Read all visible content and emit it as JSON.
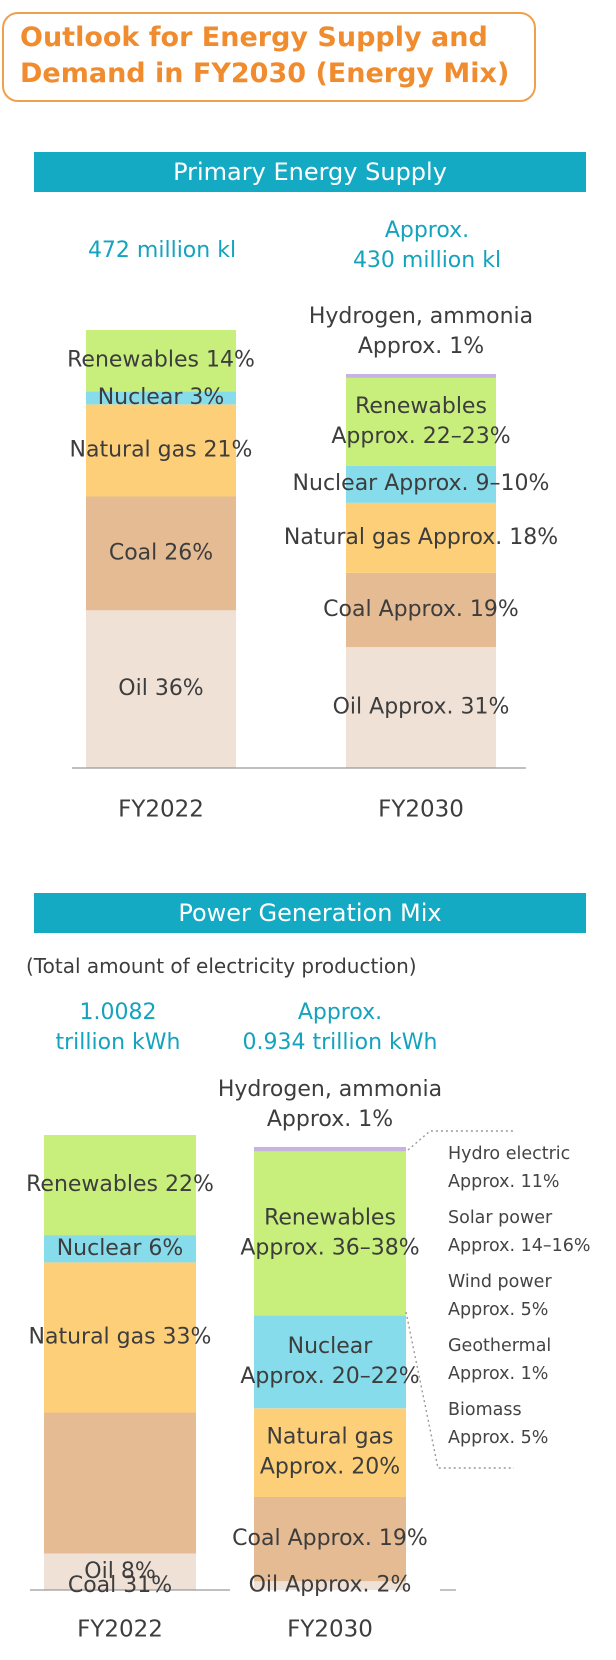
{
  "title": "Outlook for Energy Supply and\nDemand in FY2030 (Energy Mix)",
  "colors": {
    "title": "#f08c2e",
    "banner": "#14aac4",
    "total": "#14a3bd",
    "oil": "#f0e1d6",
    "coal": "#e5bb93",
    "natural_gas": "#fdcf78",
    "nuclear": "#86dcea",
    "renewables": "#c8ef7b",
    "hydrogen_ammonia": "#c7b3df"
  },
  "primary": {
    "banner": "Primary Energy Supply",
    "total_2022": "472 million kl",
    "total_2030": "Approx.\n430 million kl"
  },
  "power": {
    "banner": "Power Generation Mix",
    "note": "(Total amount of electricity production)",
    "total_2022": "1.0082\ntrillion kWh",
    "total_2030": "Approx.\n0.934 trillion kWh"
  },
  "renewables_breakdown": [
    {
      "label": "Hydro electric",
      "value": "Approx. 11%"
    },
    {
      "label": "Solar power",
      "value": "Approx. 14–16%"
    },
    {
      "label": "Wind power",
      "value": "Approx. 5%"
    },
    {
      "label": "Geothermal",
      "value": "Approx. 1%"
    },
    {
      "label": "Biomass",
      "value": "Approx. 5%"
    }
  ],
  "chart_data": [
    {
      "type": "bar",
      "title": "Primary Energy Supply",
      "categories": [
        "FY2022",
        "FY2030"
      ],
      "stacked": true,
      "unit": "%",
      "series": [
        {
          "name": "Oil",
          "key": "oil",
          "values": [
            36,
            31
          ],
          "labels": [
            "Oil 36%",
            "Oil Approx. 31%"
          ]
        },
        {
          "name": "Coal",
          "key": "coal",
          "values": [
            26,
            19
          ],
          "labels": [
            "Coal 26%",
            "Coal Approx. 19%"
          ]
        },
        {
          "name": "Natural gas",
          "key": "natural_gas",
          "values": [
            21,
            18
          ],
          "labels": [
            "Natural gas 21%",
            "Natural gas Approx. 18%"
          ]
        },
        {
          "name": "Nuclear",
          "key": "nuclear",
          "values": [
            3,
            9.5
          ],
          "labels": [
            "Nuclear 3%",
            "Nuclear Approx. 9–10%"
          ]
        },
        {
          "name": "Renewables",
          "key": "renewables",
          "values": [
            14,
            22.5
          ],
          "labels": [
            "Renewables 14%",
            "Renewables\nApprox. 22–23%"
          ]
        },
        {
          "name": "Hydrogen, ammonia",
          "key": "hydrogen_ammonia",
          "values": [
            0,
            1
          ],
          "labels": [
            "",
            "Hydrogen, ammonia\nApprox. 1%"
          ]
        }
      ]
    },
    {
      "type": "bar",
      "title": "Power Generation Mix",
      "categories": [
        "FY2022",
        "FY2030"
      ],
      "stacked": true,
      "unit": "%",
      "series": [
        {
          "name": "Oil",
          "key": "oil",
          "values": [
            8,
            2
          ],
          "labels": [
            "Oil 8%",
            "Oil Approx. 2%"
          ]
        },
        {
          "name": "Coal",
          "key": "coal",
          "values": [
            31,
            19
          ],
          "labels": [
            "Coal 31%",
            "Coal Approx. 19%"
          ]
        },
        {
          "name": "Natural gas",
          "key": "natural_gas",
          "values": [
            33,
            20
          ],
          "labels": [
            "Natural gas 33%",
            "Natural gas\nApprox. 20%"
          ]
        },
        {
          "name": "Nuclear",
          "key": "nuclear",
          "values": [
            6,
            21
          ],
          "labels": [
            "Nuclear 6%",
            "Nuclear\nApprox. 20–22%"
          ]
        },
        {
          "name": "Renewables",
          "key": "renewables",
          "values": [
            22,
            37
          ],
          "labels": [
            "Renewables 22%",
            "Renewables\nApprox. 36–38%"
          ]
        },
        {
          "name": "Hydrogen, ammonia",
          "key": "hydrogen_ammonia",
          "values": [
            0,
            1
          ],
          "labels": [
            "",
            "Hydrogen, ammonia\nApprox. 1%"
          ]
        }
      ]
    }
  ]
}
